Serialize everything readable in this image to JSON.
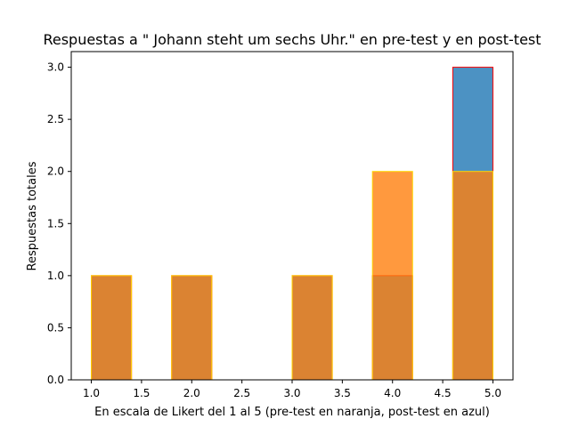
{
  "chart_data": {
    "type": "bar",
    "title": "Respuestas a \" Johann steht um sechs Uhr.\" en pre-test y en post-test",
    "xlabel": "En escala de Likert del 1 al 5 (pre-test en naranja, post-test en azul)",
    "ylabel": "Respuestas totales",
    "xlim": [
      0.8,
      5.2
    ],
    "ylim": [
      0.0,
      3.15
    ],
    "bin_edges": [
      1.0,
      1.4,
      1.8,
      2.2,
      2.6,
      3.0,
      3.4,
      3.8,
      4.2,
      4.6,
      5.0
    ],
    "xticks": [
      "1.0",
      "1.5",
      "2.0",
      "2.5",
      "3.0",
      "3.5",
      "4.0",
      "4.5",
      "5.0"
    ],
    "yticks": [
      "0.0",
      "0.5",
      "1.0",
      "1.5",
      "2.0",
      "2.5",
      "3.0"
    ],
    "grid": false,
    "series": [
      {
        "values": [
          1,
          0,
          1,
          0,
          0,
          1,
          0,
          1,
          0,
          3
        ],
        "color": "#1f77b4",
        "edge_color": "#ff0000"
      },
      {
        "values": [
          1,
          0,
          1,
          0,
          0,
          1,
          0,
          2,
          0,
          2
        ],
        "color": "#ff7f0e",
        "edge_color": "#ffd700"
      }
    ]
  }
}
